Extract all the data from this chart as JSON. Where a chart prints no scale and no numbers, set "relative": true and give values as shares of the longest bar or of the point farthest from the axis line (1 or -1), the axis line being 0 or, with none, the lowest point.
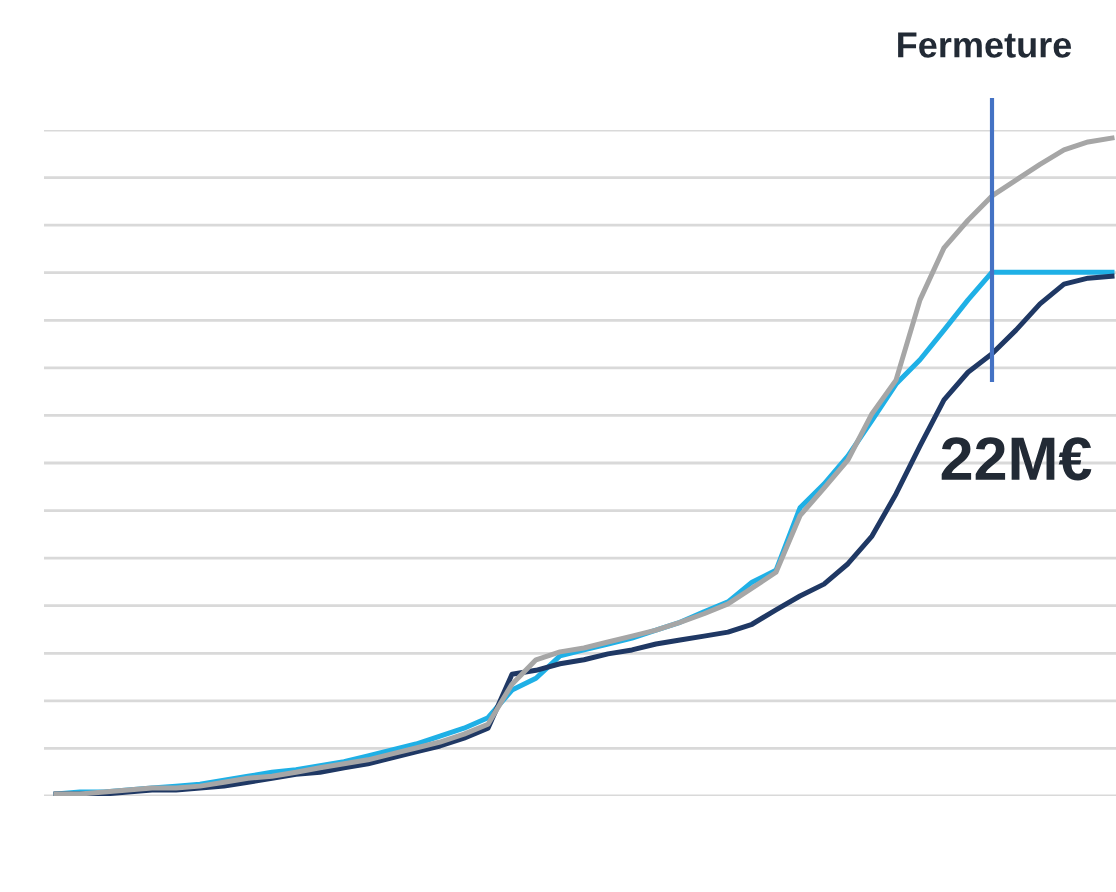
{
  "chart_data": {
    "type": "line",
    "relative": true,
    "grid": "y",
    "tick_labels": false,
    "legend": false,
    "categories": [
      null,
      null,
      null,
      null,
      null,
      null,
      null,
      null,
      null,
      null,
      null,
      null,
      null,
      null,
      null,
      null,
      null,
      null,
      null,
      null,
      null,
      null,
      null,
      null,
      null,
      null,
      null,
      null,
      null,
      null,
      null,
      null,
      null,
      null,
      null,
      null,
      null,
      null,
      null,
      null,
      null,
      null,
      null,
      null,
      null
    ],
    "series": [
      {
        "color": "#1fb0e6",
        "values": [
          0.003,
          0.006,
          0.006,
          0.009,
          0.012,
          0.015,
          0.018,
          0.024,
          0.03,
          0.036,
          0.04,
          0.046,
          0.052,
          0.061,
          0.07,
          0.079,
          0.091,
          0.103,
          0.119,
          0.161,
          0.179,
          0.213,
          0.222,
          0.231,
          0.24,
          0.252,
          0.264,
          0.28,
          0.295,
          0.325,
          0.343,
          0.438,
          0.474,
          0.517,
          0.571,
          0.626,
          0.663,
          0.708,
          0.754,
          0.796,
          0.796,
          0.796,
          0.796,
          0.796,
          0.796
        ]
      },
      {
        "color": "#1f3864",
        "values": [
          0.003,
          0.003,
          0.003,
          0.006,
          0.009,
          0.009,
          0.012,
          0.015,
          0.021,
          0.027,
          0.033,
          0.036,
          0.043,
          0.049,
          0.058,
          0.067,
          0.076,
          0.088,
          0.103,
          0.185,
          0.191,
          0.201,
          0.207,
          0.216,
          0.222,
          0.231,
          0.237,
          0.243,
          0.249,
          0.261,
          0.283,
          0.304,
          0.322,
          0.353,
          0.395,
          0.459,
          0.532,
          0.602,
          0.644,
          0.672,
          0.708,
          0.748,
          0.778,
          0.787,
          0.79
        ]
      },
      {
        "color": "#a6a6a6",
        "values": [
          0.003,
          0.003,
          0.006,
          0.009,
          0.012,
          0.012,
          0.015,
          0.021,
          0.027,
          0.03,
          0.036,
          0.043,
          0.049,
          0.055,
          0.064,
          0.073,
          0.082,
          0.094,
          0.109,
          0.17,
          0.207,
          0.219,
          0.225,
          0.234,
          0.243,
          0.252,
          0.264,
          0.277,
          0.292,
          0.316,
          0.34,
          0.426,
          0.468,
          0.511,
          0.581,
          0.632,
          0.754,
          0.833,
          0.875,
          0.912,
          0.936,
          0.96,
          0.982,
          0.994,
          1.0
        ]
      }
    ],
    "annotations": [
      "Fermeture",
      "22M€"
    ]
  }
}
